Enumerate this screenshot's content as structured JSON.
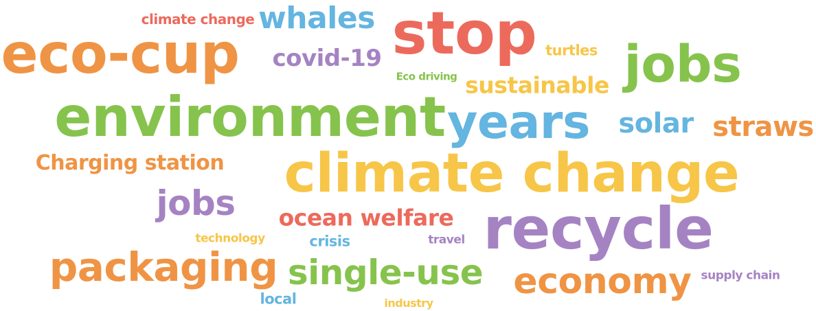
{
  "words": [
    {
      "text": "climate change",
      "color": "#ec6a5c"
    },
    {
      "text": "whales",
      "color": "#64b5e0"
    },
    {
      "text": "stop",
      "color": "#ec6a5c"
    },
    {
      "text": "eco-cup",
      "color": "#ef9444"
    },
    {
      "text": "covid-19",
      "color": "#a583c2"
    },
    {
      "text": "turtles",
      "color": "#f7c648"
    },
    {
      "text": "jobs",
      "color": "#86c34d"
    },
    {
      "text": "Eco driving",
      "color": "#86c34d"
    },
    {
      "text": "sustainable",
      "color": "#f7c648"
    },
    {
      "text": "environment",
      "color": "#86c34d"
    },
    {
      "text": "years",
      "color": "#64b5e0"
    },
    {
      "text": "solar",
      "color": "#64b5e0"
    },
    {
      "text": "straws",
      "color": "#ef9444"
    },
    {
      "text": "Charging station",
      "color": "#ef9444"
    },
    {
      "text": "climate change",
      "color": "#f7c648"
    },
    {
      "text": "jobs",
      "color": "#a583c2"
    },
    {
      "text": "ocean welfare",
      "color": "#ec6a5c"
    },
    {
      "text": "recycle",
      "color": "#a583c2"
    },
    {
      "text": "technology",
      "color": "#f7c648"
    },
    {
      "text": "crisis",
      "color": "#64b5e0"
    },
    {
      "text": "travel",
      "color": "#a583c2"
    },
    {
      "text": "packaging",
      "color": "#ef9444"
    },
    {
      "text": "single-use",
      "color": "#86c34d"
    },
    {
      "text": "economy",
      "color": "#ef9444"
    },
    {
      "text": "supply chain",
      "color": "#a583c2"
    },
    {
      "text": "local",
      "color": "#64b5e0"
    },
    {
      "text": "industry",
      "color": "#f7c648"
    }
  ]
}
